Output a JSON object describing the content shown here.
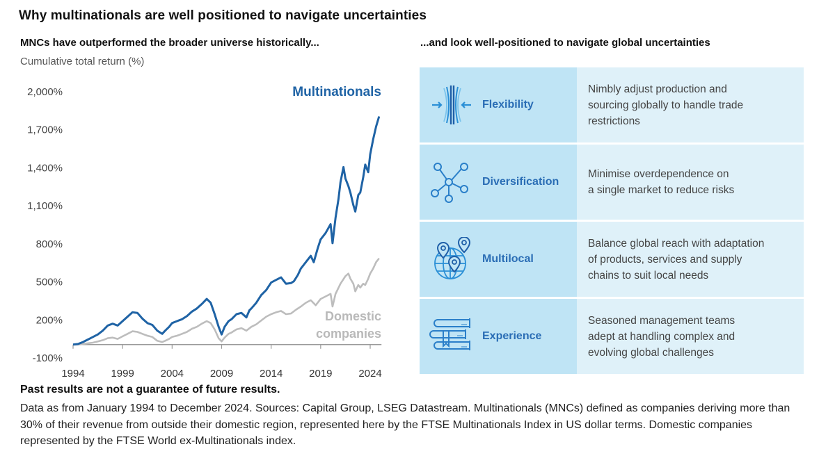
{
  "title": "Why multinationals are well positioned to navigate uncertainties",
  "left_subtitle": "MNCs have outperformed the broader universe historically...",
  "right_subtitle": "...and look well-positioned to navigate global uncertainties",
  "chart_data": {
    "type": "line",
    "title": "MNCs have outperformed the broader universe historically...",
    "xlabel": "",
    "ylabel": "Cumulative total return (%)",
    "ylim": [
      -100,
      2000
    ],
    "xlim": [
      1994,
      2025
    ],
    "yticks": [
      -100,
      200,
      500,
      800,
      1100,
      1400,
      1700,
      2000
    ],
    "ytick_labels": [
      "-100%",
      "200%",
      "500%",
      "800%",
      "1,100%",
      "1,400%",
      "1,700%",
      "2,000%"
    ],
    "xticks": [
      1994,
      1999,
      2004,
      2009,
      2014,
      2019,
      2024
    ],
    "xtick_labels": [
      "1994",
      "1999",
      "2004",
      "2009",
      "2014",
      "2019",
      "2024"
    ],
    "grid": false,
    "legend": "inline labels: Multinationals top-right, Domestic companies right",
    "series": [
      {
        "name": "Multinationals",
        "color": "#1f63a5",
        "x": [
          1994.0,
          1994.5,
          1995.0,
          1995.5,
          1996.0,
          1996.5,
          1997.0,
          1997.5,
          1998.0,
          1998.5,
          1999.0,
          1999.5,
          2000.0,
          2000.5,
          2001.0,
          2001.5,
          2002.0,
          2002.5,
          2003.0,
          2003.3,
          2003.7,
          2004.0,
          2004.5,
          2005.0,
          2005.5,
          2006.0,
          2006.5,
          2007.0,
          2007.5,
          2007.9,
          2008.3,
          2008.7,
          2009.0,
          2009.3,
          2009.7,
          2010.0,
          2010.5,
          2011.0,
          2011.5,
          2011.8,
          2012.0,
          2012.5,
          2013.0,
          2013.5,
          2014.0,
          2014.5,
          2015.0,
          2015.5,
          2016.0,
          2016.3,
          2016.7,
          2017.0,
          2017.5,
          2018.0,
          2018.3,
          2018.7,
          2019.0,
          2019.5,
          2020.0,
          2020.2,
          2020.5,
          2020.8,
          2021.0,
          2021.3,
          2021.5,
          2021.8,
          2022.0,
          2022.3,
          2022.5,
          2022.8,
          2023.0,
          2023.3,
          2023.5,
          2023.8,
          2024.0,
          2024.3,
          2024.6,
          2024.9
        ],
        "values": [
          0,
          5,
          20,
          40,
          60,
          80,
          110,
          150,
          165,
          150,
          185,
          220,
          255,
          250,
          205,
          170,
          155,
          110,
          85,
          110,
          140,
          170,
          185,
          200,
          225,
          260,
          285,
          320,
          360,
          330,
          240,
          140,
          80,
          140,
          185,
          200,
          240,
          250,
          215,
          270,
          285,
          330,
          390,
          430,
          490,
          510,
          530,
          480,
          485,
          500,
          550,
          600,
          650,
          700,
          650,
          760,
          830,
          880,
          950,
          800,
          1000,
          1150,
          1280,
          1400,
          1310,
          1250,
          1200,
          1100,
          1050,
          1180,
          1200,
          1320,
          1420,
          1360,
          1500,
          1620,
          1720,
          1800
        ]
      },
      {
        "name": "Domestic companies",
        "color": "#bdbdbd",
        "x": [
          1994.0,
          1994.5,
          1995.0,
          1995.5,
          1996.0,
          1996.5,
          1997.0,
          1997.5,
          1998.0,
          1998.5,
          1999.0,
          1999.5,
          2000.0,
          2000.5,
          2001.0,
          2001.5,
          2002.0,
          2002.5,
          2003.0,
          2003.3,
          2003.7,
          2004.0,
          2004.5,
          2005.0,
          2005.5,
          2006.0,
          2006.5,
          2007.0,
          2007.5,
          2007.9,
          2008.3,
          2008.7,
          2009.0,
          2009.3,
          2009.7,
          2010.0,
          2010.5,
          2011.0,
          2011.5,
          2012.0,
          2012.5,
          2013.0,
          2013.5,
          2014.0,
          2014.5,
          2015.0,
          2015.5,
          2016.0,
          2016.5,
          2017.0,
          2017.5,
          2018.0,
          2018.5,
          2019.0,
          2019.5,
          2020.0,
          2020.2,
          2020.5,
          2021.0,
          2021.5,
          2021.8,
          2022.0,
          2022.3,
          2022.5,
          2022.8,
          2023.0,
          2023.3,
          2023.5,
          2023.8,
          2024.0,
          2024.3,
          2024.6,
          2024.9
        ],
        "values": [
          0,
          0,
          5,
          10,
          15,
          25,
          35,
          50,
          55,
          45,
          65,
          85,
          105,
          100,
          85,
          70,
          60,
          30,
          20,
          30,
          45,
          60,
          70,
          85,
          100,
          125,
          140,
          165,
          185,
          170,
          120,
          50,
          25,
          55,
          85,
          95,
          120,
          130,
          110,
          140,
          160,
          190,
          220,
          240,
          255,
          265,
          240,
          245,
          275,
          300,
          330,
          350,
          310,
          360,
          380,
          400,
          300,
          400,
          480,
          540,
          560,
          520,
          480,
          420,
          470,
          450,
          480,
          470,
          520,
          560,
          600,
          650,
          680
        ]
      }
    ]
  },
  "chart_labels": {
    "ylabel": "Cumulative total return (%)",
    "multinationals": "Multinationals",
    "domestic_line1": "Domestic",
    "domestic_line2": "companies"
  },
  "pillars": [
    {
      "icon": "flexibility-icon",
      "label": "Flexibility",
      "description": "Nimbly adjust production and\nsourcing globally to handle trade\nrestrictions"
    },
    {
      "icon": "network-nodes-icon",
      "label": "Diversification",
      "description": "Minimise overdependence on\na single market to reduce risks"
    },
    {
      "icon": "globe-pins-icon",
      "label": "Multilocal",
      "description": "Balance global reach with adaptation\nof products, services and supply\nchains to suit local needs"
    },
    {
      "icon": "books-icon",
      "label": "Experience",
      "description": "Seasoned management teams\nadept at handling complex and\nevolving global challenges"
    }
  ],
  "footer": {
    "disclaimer": "Past results are not a guarantee of future results.",
    "notes": "Data as from January 1994 to December 2024. Sources: Capital Group, LSEG Datastream. Multinationals (MNCs) defined as companies deriving more than 30% of their revenue from outside their domestic region, represented here by the FTSE Multinationals Index in US dollar terms. Domestic companies represented by the FTSE World ex-Multinationals index."
  },
  "colors": {
    "multinationals": "#1f63a5",
    "domestic": "#bdbdbd",
    "panel_head": "#bfe4f5",
    "panel_desc": "#dff1f9",
    "label_blue": "#2a6db5"
  }
}
